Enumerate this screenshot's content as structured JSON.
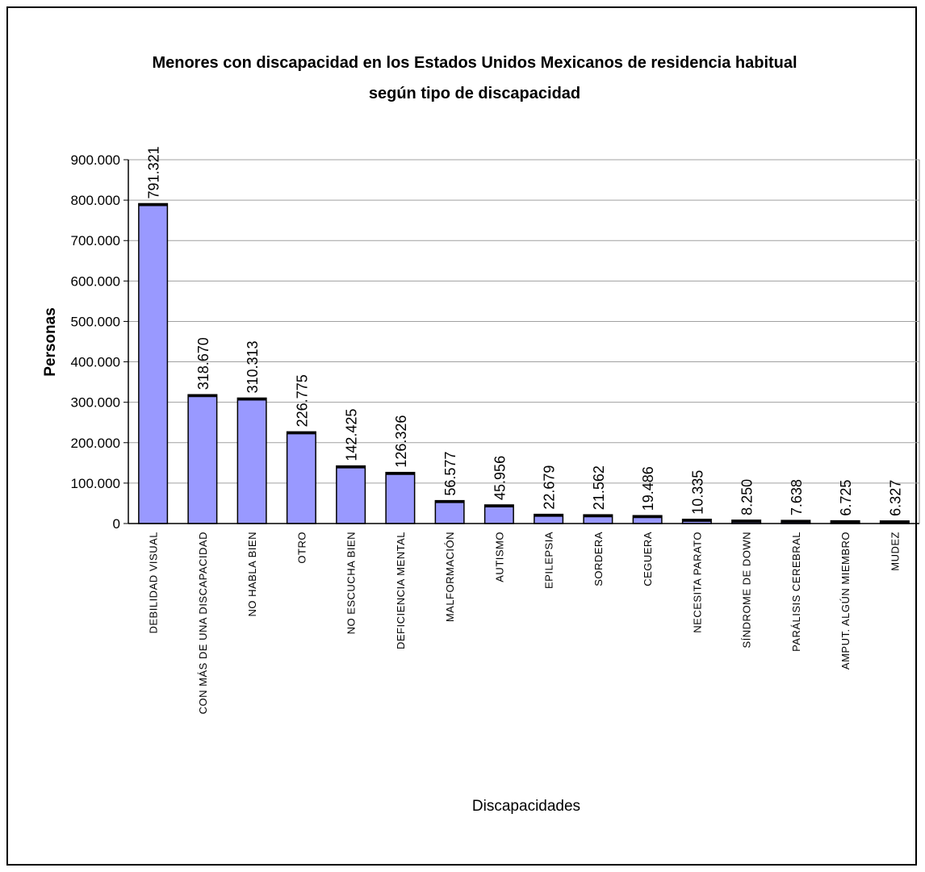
{
  "chart_data": {
    "type": "bar",
    "title": [
      "Menores con discapacidad en los Estados Unidos Mexicanos de residencia habitual",
      "según tipo de discapacidad"
    ],
    "xlabel": "Discapacidades",
    "ylabel": "Personas",
    "ylim": [
      0,
      900000
    ],
    "yticks": [
      0,
      100000,
      200000,
      300000,
      400000,
      500000,
      600000,
      700000,
      800000,
      900000
    ],
    "ytick_labels": [
      "0",
      "100.000",
      "200.000",
      "300.000",
      "400.000",
      "500.000",
      "600.000",
      "700.000",
      "800.000",
      "900.000"
    ],
    "grid": true,
    "bar_color": "#9999ff",
    "categories": [
      "DEBILIDAD VISUAL",
      "CON MÁS DE UNA DISCAPACIDAD",
      "NO HABLA BIEN",
      "OTRO",
      "NO ESCUCHA BIEN",
      "DEFICIENCIA MENTAL",
      "MALFORMACIÓN",
      "AUTISMO",
      "EPILEPSIA",
      "SORDERA",
      "CEGUERA",
      "NECESITA PARATO",
      "SÍNDROME DE DOWN",
      "PARÁLISIS CEREBRAL",
      "AMPUT. ALGÚN MIEMBRO",
      "MUDEZ"
    ],
    "values": [
      791321,
      318670,
      310313,
      226775,
      142425,
      126326,
      56577,
      45956,
      22679,
      21562,
      19486,
      10335,
      8250,
      7638,
      6725,
      6327
    ],
    "data_labels": [
      "791.321",
      "318.670",
      "310.313",
      "226.775",
      "142.425",
      "126.326",
      "56.577",
      "45.956",
      "22.679",
      "21.562",
      "19.486",
      "10.335",
      "8.250",
      "7.638",
      "6.725",
      "6.327"
    ]
  }
}
